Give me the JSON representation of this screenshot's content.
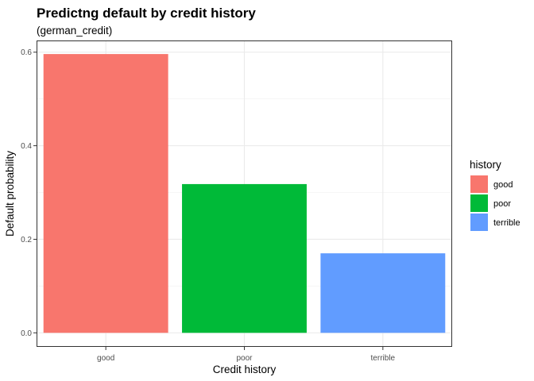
{
  "chart_data": {
    "type": "bar",
    "title": "Predictng default by credit history",
    "subtitle": "(german_credit)",
    "xlabel": "Credit history",
    "ylabel": "Default probability",
    "categories": [
      "good",
      "poor",
      "terrible"
    ],
    "values": [
      0.596,
      0.318,
      0.17
    ],
    "colors": [
      "#F8766D",
      "#00BA38",
      "#619CFF"
    ],
    "ylim": [
      -0.03,
      0.625
    ],
    "yticks": [
      0.0,
      0.2,
      0.4,
      0.6
    ],
    "ytick_labels": [
      "0.0",
      "0.2",
      "0.4",
      "0.6"
    ],
    "grid": true,
    "legend": {
      "title": "history",
      "entries": [
        "good",
        "poor",
        "terrible"
      ],
      "position": "right"
    }
  }
}
